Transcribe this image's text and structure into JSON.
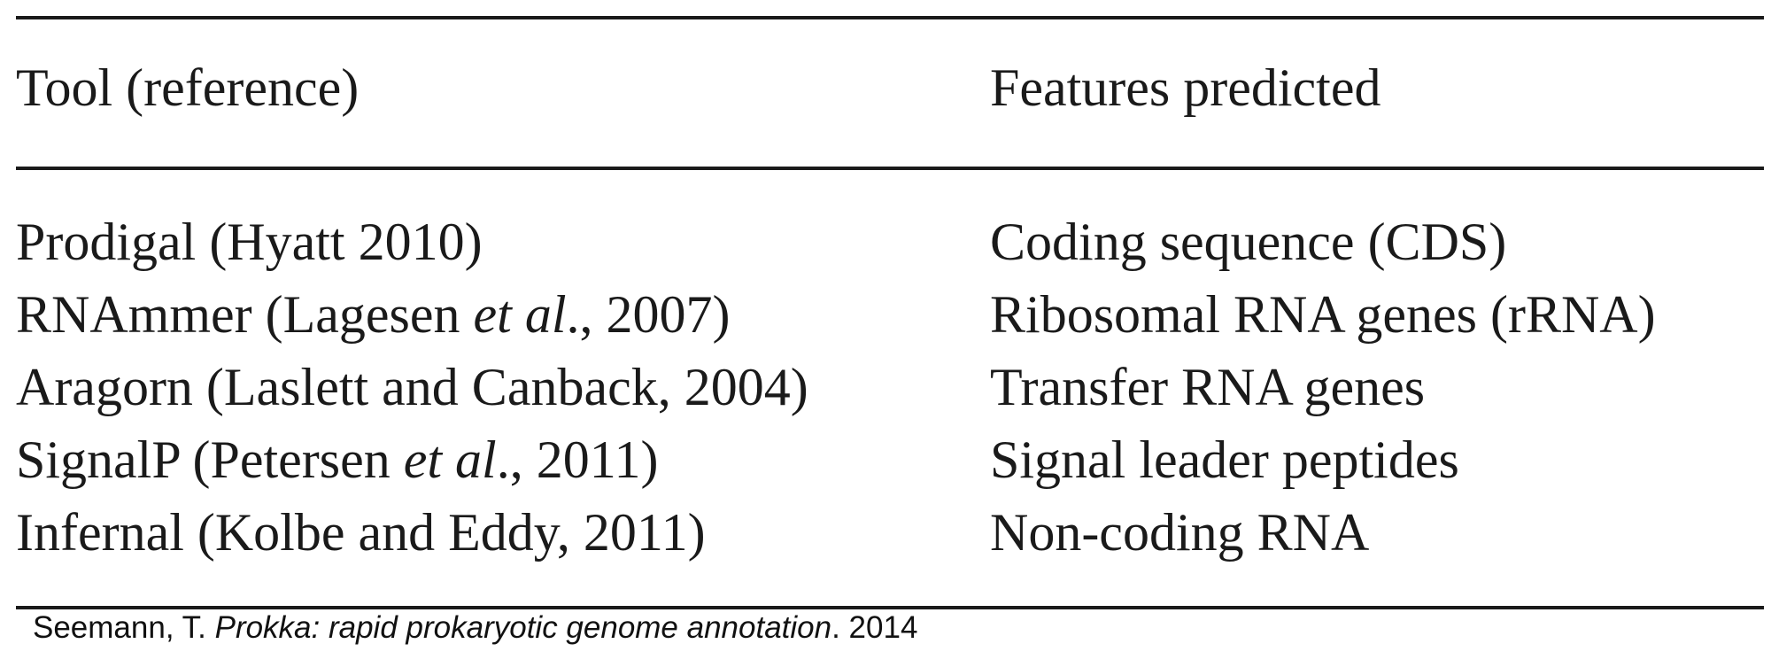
{
  "table": {
    "headers": {
      "tool": "Tool (reference)",
      "features": "Features predicted"
    },
    "rows": [
      {
        "tool_pre": "Prodigal (Hyatt 2010)",
        "tool_italic": "",
        "tool_post": "",
        "feature": "Coding sequence (CDS)"
      },
      {
        "tool_pre": "RNAmmer (Lagesen ",
        "tool_italic": "et al",
        "tool_post": "., 2007)",
        "feature": "Ribosomal RNA genes (rRNA)"
      },
      {
        "tool_pre": "Aragorn (Laslett and Canback, 2004)",
        "tool_italic": "",
        "tool_post": "",
        "feature": "Transfer RNA genes"
      },
      {
        "tool_pre": "SignalP (Petersen ",
        "tool_italic": "et al",
        "tool_post": "., 2011)",
        "feature": "Signal leader peptides"
      },
      {
        "tool_pre": "Infernal (Kolbe and Eddy, 2011)",
        "tool_italic": "",
        "tool_post": "",
        "feature": "Non-coding RNA"
      }
    ]
  },
  "citation": {
    "author": "Seemann, T. ",
    "title": "Prokka: rapid prokaryotic genome annotation",
    "year": ". 2014"
  }
}
